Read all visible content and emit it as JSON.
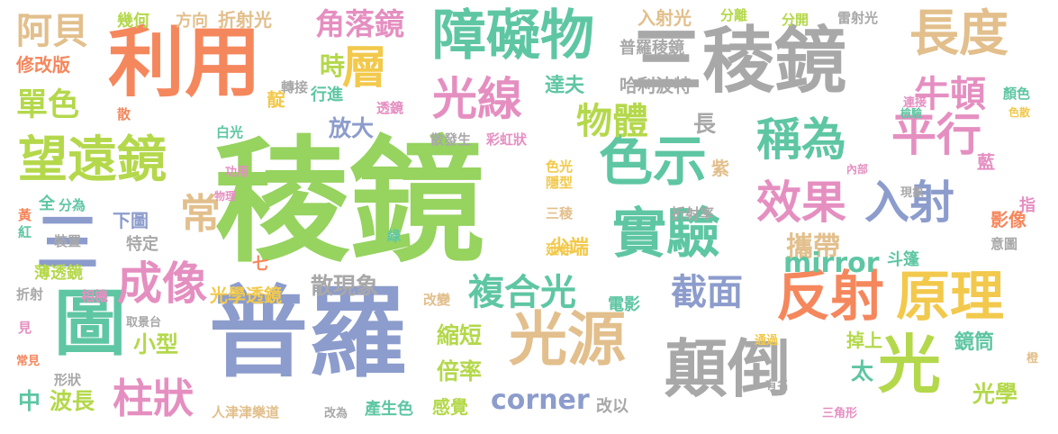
{
  "palette": {
    "green": "#96d35f",
    "blue": "#8c9ccc",
    "orange": "#f5875d",
    "tan": "#e2bf8c",
    "gray": "#a8a8a8",
    "teal": "#5ec6a3",
    "pink": "#e58fc1",
    "lime": "#b4d84b",
    "yellow": "#f2c94c"
  },
  "words": [
    {
      "text": "稜鏡",
      "color": "green"
    },
    {
      "text": "普羅",
      "color": "blue"
    },
    {
      "text": "三稜鏡",
      "color": "gray"
    },
    {
      "text": "利用",
      "color": "orange"
    },
    {
      "text": "障礙物",
      "color": "teal"
    },
    {
      "text": "長度",
      "color": "tan"
    },
    {
      "text": "光線",
      "color": "pink"
    },
    {
      "text": "望遠鏡",
      "color": "lime"
    },
    {
      "text": "色示",
      "color": "teal"
    },
    {
      "text": "稱為",
      "color": "teal"
    },
    {
      "text": "平行",
      "color": "pink"
    },
    {
      "text": "實驗",
      "color": "teal"
    },
    {
      "text": "反射",
      "color": "orange"
    },
    {
      "text": "原理",
      "color": "yellow"
    },
    {
      "text": "光源",
      "color": "tan"
    },
    {
      "text": "顛倒",
      "color": "gray"
    },
    {
      "text": "圖",
      "color": "teal"
    },
    {
      "text": "光",
      "color": "lime"
    },
    {
      "text": "成像",
      "color": "pink"
    },
    {
      "text": "效果",
      "color": "pink"
    },
    {
      "text": "入射",
      "color": "blue"
    },
    {
      "text": "層",
      "color": "yellow"
    },
    {
      "text": "物體",
      "color": "lime"
    },
    {
      "text": "常",
      "color": "tan"
    },
    {
      "text": "牛頓",
      "color": "pink"
    },
    {
      "text": "截面",
      "color": "blue"
    },
    {
      "text": "複合光",
      "color": "teal"
    },
    {
      "text": "柱狀",
      "color": "pink"
    },
    {
      "text": "阿貝",
      "color": "tan"
    },
    {
      "text": "角落鏡",
      "color": "pink"
    },
    {
      "text": "單色",
      "color": "lime"
    },
    {
      "text": "三",
      "color": "blue"
    },
    {
      "text": "時",
      "color": "lime"
    },
    {
      "text": "放大",
      "color": "blue"
    },
    {
      "text": "散現象",
      "color": "gray"
    },
    {
      "text": "攜帶",
      "color": "tan"
    },
    {
      "text": "mirror",
      "color": "teal"
    },
    {
      "text": "corner",
      "color": "blue"
    },
    {
      "text": "倍率",
      "color": "lime"
    },
    {
      "text": "縮短",
      "color": "lime"
    },
    {
      "text": "小型",
      "color": "lime"
    },
    {
      "text": "感覺",
      "color": "lime"
    },
    {
      "text": "達夫",
      "color": "teal"
    },
    {
      "text": "鏡筒",
      "color": "teal"
    },
    {
      "text": "光學",
      "color": "lime"
    },
    {
      "text": "長",
      "color": "gray"
    },
    {
      "text": "太",
      "color": "teal"
    },
    {
      "text": "掉上",
      "color": "lime"
    },
    {
      "text": "尖端",
      "color": "yellow"
    },
    {
      "text": "哈利波特",
      "color": "gray"
    },
    {
      "text": "修改版",
      "color": "orange"
    },
    {
      "text": "入射光",
      "color": "tan"
    },
    {
      "text": "幾何",
      "color": "lime"
    },
    {
      "text": "方向",
      "color": "tan"
    },
    {
      "text": "折射光",
      "color": "tan"
    },
    {
      "text": "分離",
      "color": "lime"
    },
    {
      "text": "分開",
      "color": "lime"
    },
    {
      "text": "雷射光",
      "color": "gray"
    },
    {
      "text": "普羅稜鏡",
      "color": "gray"
    },
    {
      "text": "轉接",
      "color": "gray"
    },
    {
      "text": "靛",
      "color": "yellow"
    },
    {
      "text": "行進",
      "color": "teal"
    },
    {
      "text": "透鏡",
      "color": "pink"
    },
    {
      "text": "散發生",
      "color": "gray"
    },
    {
      "text": "彩虹狀",
      "color": "pink"
    },
    {
      "text": "白光",
      "color": "teal"
    },
    {
      "text": "散",
      "color": "orange"
    },
    {
      "text": "連接",
      "color": "pink"
    },
    {
      "text": "檢驗",
      "color": "teal"
    },
    {
      "text": "顏色",
      "color": "teal"
    },
    {
      "text": "色散",
      "color": "yellow"
    },
    {
      "text": "紫",
      "color": "tan"
    },
    {
      "text": "功用",
      "color": "pink"
    },
    {
      "text": "色光",
      "color": "yellow"
    },
    {
      "text": "隱型",
      "color": "yellow"
    },
    {
      "text": "內部",
      "color": "pink"
    },
    {
      "text": "藍",
      "color": "pink"
    },
    {
      "text": "物理",
      "color": "pink"
    },
    {
      "text": "三稜",
      "color": "tan"
    },
    {
      "text": "折射率",
      "color": "gray"
    },
    {
      "text": "現象",
      "color": "gray"
    },
    {
      "text": "指",
      "color": "pink"
    },
    {
      "text": "全",
      "color": "teal"
    },
    {
      "text": "分為",
      "color": "teal"
    },
    {
      "text": "下圖",
      "color": "blue"
    },
    {
      "text": "特定",
      "color": "gray"
    },
    {
      "text": "黃",
      "color": "orange"
    },
    {
      "text": "紅",
      "color": "teal"
    },
    {
      "text": "裝置",
      "color": "gray"
    },
    {
      "text": "綠",
      "color": "teal"
    },
    {
      "text": "影像",
      "color": "orange"
    },
    {
      "text": "意圖",
      "color": "gray"
    },
    {
      "text": "延伸",
      "color": "yellow"
    },
    {
      "text": "斗篷",
      "color": "teal"
    },
    {
      "text": "七",
      "color": "orange"
    },
    {
      "text": "薄透鏡",
      "color": "lime"
    },
    {
      "text": "光學透鏡",
      "color": "yellow"
    },
    {
      "text": "折射",
      "color": "gray"
    },
    {
      "text": "相機",
      "color": "pink"
    },
    {
      "text": "改變",
      "color": "tan"
    },
    {
      "text": "電影",
      "color": "teal"
    },
    {
      "text": "取景台",
      "color": "gray"
    },
    {
      "text": "見",
      "color": "pink"
    },
    {
      "text": "通過",
      "color": "yellow"
    },
    {
      "text": "常見",
      "color": "orange"
    },
    {
      "text": "橙",
      "color": "tan"
    },
    {
      "text": "有名",
      "color": "gray"
    },
    {
      "text": "形狀",
      "color": "gray"
    },
    {
      "text": "中",
      "color": "teal"
    },
    {
      "text": "波長",
      "color": "lime"
    },
    {
      "text": "人津津樂道",
      "color": "tan"
    },
    {
      "text": "改為",
      "color": "gray"
    },
    {
      "text": "產生色",
      "color": "teal"
    },
    {
      "text": "改以",
      "color": "gray"
    },
    {
      "text": "三角形",
      "color": "pink"
    }
  ]
}
